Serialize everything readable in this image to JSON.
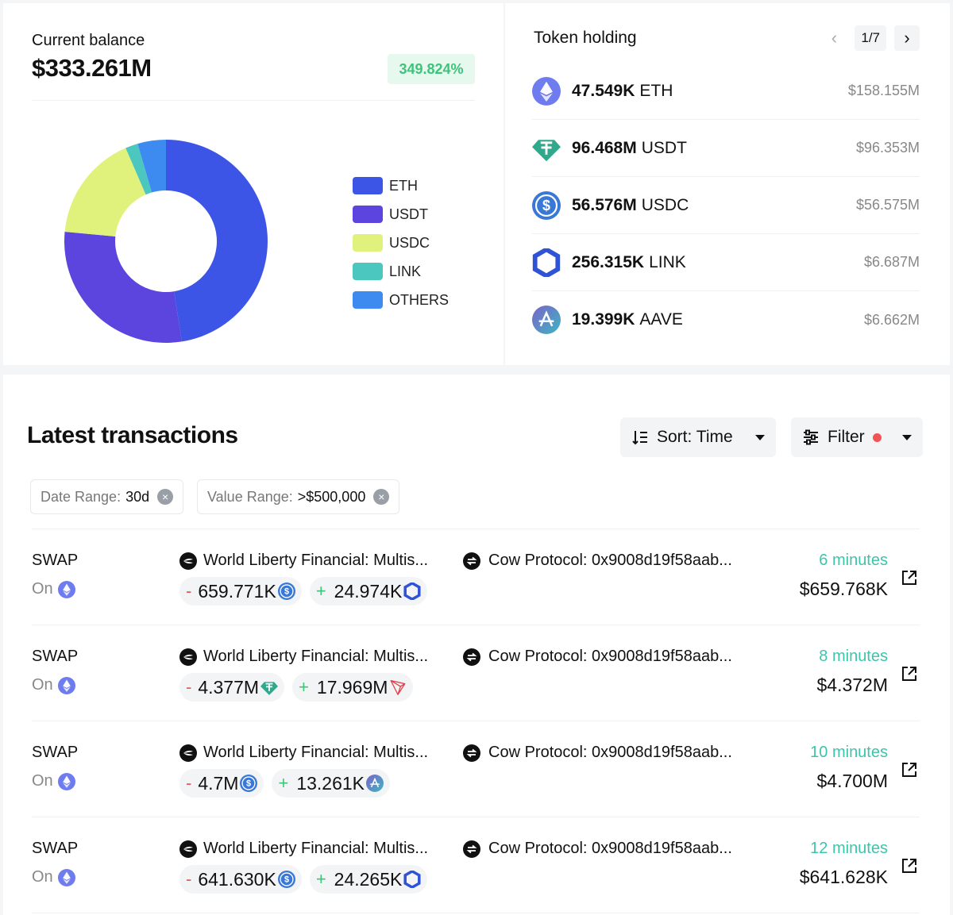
{
  "balance": {
    "label": "Current balance",
    "value": "$333.261M",
    "change": "349.824%"
  },
  "chart_data": {
    "type": "pie",
    "categories": [
      "ETH",
      "USDT",
      "USDC",
      "LINK",
      "OTHERS"
    ],
    "values": [
      47.5,
      29.0,
      17.0,
      2.0,
      4.5
    ],
    "colors": [
      "#3d55e6",
      "#5b45de",
      "#e0f27c",
      "#4cc7c0",
      "#3d8af0"
    ],
    "title": "",
    "legend_position": "right"
  },
  "holding": {
    "title": "Token holding",
    "page": "1/7",
    "items": [
      {
        "amount": "47.549K",
        "symbol": "ETH",
        "usd": "$158.155M",
        "icon": "eth-icon"
      },
      {
        "amount": "96.468M",
        "symbol": "USDT",
        "usd": "$96.353M",
        "icon": "usdt-icon"
      },
      {
        "amount": "56.576M",
        "symbol": "USDC",
        "usd": "$56.575M",
        "icon": "usdc-icon"
      },
      {
        "amount": "256.315K",
        "symbol": "LINK",
        "usd": "$6.687M",
        "icon": "link-icon"
      },
      {
        "amount": "19.399K",
        "symbol": "AAVE",
        "usd": "$6.662M",
        "icon": "aave-icon"
      }
    ]
  },
  "transactions": {
    "title": "Latest transactions",
    "sort_label": "Sort: Time",
    "filter_label": "Filter",
    "chips": [
      {
        "key": "Date Range:",
        "value": "30d"
      },
      {
        "key": "Value Range:",
        "value": ">$500,000"
      }
    ],
    "rows": [
      {
        "type": "SWAP",
        "chain_label": "On",
        "from": "World Liberty Financial: Multis...",
        "to": "Cow Protocol: 0x9008d19f58aab...",
        "out_amount": "659.771K",
        "out_token": "usdc-icon",
        "in_amount": "24.974K",
        "in_token": "link-icon",
        "time": "6 minutes",
        "value": "$659.768K"
      },
      {
        "type": "SWAP",
        "chain_label": "On",
        "from": "World Liberty Financial: Multis...",
        "to": "Cow Protocol: 0x9008d19f58aab...",
        "out_amount": "4.377M",
        "out_token": "usdt-icon",
        "in_amount": "17.969M",
        "in_token": "trx-icon",
        "time": "8 minutes",
        "value": "$4.372M"
      },
      {
        "type": "SWAP",
        "chain_label": "On",
        "from": "World Liberty Financial: Multis...",
        "to": "Cow Protocol: 0x9008d19f58aab...",
        "out_amount": "4.7M",
        "out_token": "usdc-icon",
        "in_amount": "13.261K",
        "in_token": "aave-icon",
        "time": "10 minutes",
        "value": "$4.700M"
      },
      {
        "type": "SWAP",
        "chain_label": "On",
        "from": "World Liberty Financial: Multis...",
        "to": "Cow Protocol: 0x9008d19f58aab...",
        "out_amount": "641.630K",
        "out_token": "usdc-icon",
        "in_amount": "24.265K",
        "in_token": "link-icon",
        "time": "12 minutes",
        "value": "$641.628K"
      }
    ]
  }
}
